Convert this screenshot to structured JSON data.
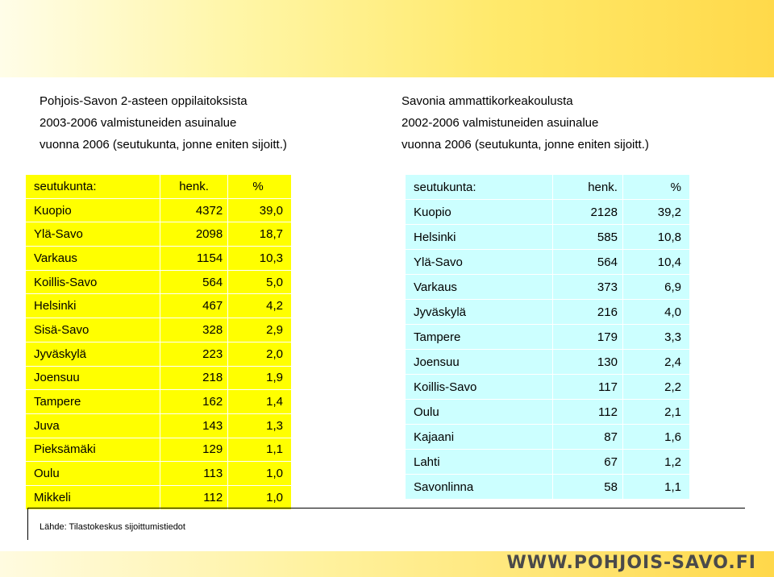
{
  "left": {
    "caption": [
      "Pohjois-Savon 2-asteen oppilaitoksista",
      "2003-2006 valmistuneiden asuinalue",
      "vuonna 2006 (seutukunta, jonne eniten sijoitt.)"
    ],
    "header": {
      "name": "seutukunta:",
      "henk": "henk.",
      "pct": "%"
    },
    "rows": [
      {
        "name": "Kuopio",
        "henk": "4372",
        "pct": "39,0"
      },
      {
        "name": "Ylä-Savo",
        "henk": "2098",
        "pct": "18,7"
      },
      {
        "name": "Varkaus",
        "henk": "1154",
        "pct": "10,3"
      },
      {
        "name": "Koillis-Savo",
        "henk": "564",
        "pct": "5,0"
      },
      {
        "name": "Helsinki",
        "henk": "467",
        "pct": "4,2"
      },
      {
        "name": "Sisä-Savo",
        "henk": "328",
        "pct": "2,9"
      },
      {
        "name": "Jyväskylä",
        "henk": "223",
        "pct": "2,0"
      },
      {
        "name": "Joensuu",
        "henk": "218",
        "pct": "1,9"
      },
      {
        "name": "Tampere",
        "henk": "162",
        "pct": "1,4"
      },
      {
        "name": "Juva",
        "henk": "143",
        "pct": "1,3"
      },
      {
        "name": "Pieksämäki",
        "henk": "129",
        "pct": "1,1"
      },
      {
        "name": "Oulu",
        "henk": "113",
        "pct": "1,0"
      },
      {
        "name": "Mikkeli",
        "henk": "112",
        "pct": "1,0"
      }
    ]
  },
  "right": {
    "caption": [
      "Savonia ammattikorkeakoulusta",
      "2002-2006 valmistuneiden asuinalue",
      "vuonna 2006 (seutukunta, jonne eniten sijoitt.)"
    ],
    "header": {
      "name": "seutukunta:",
      "henk": "henk.",
      "pct": "%"
    },
    "rows": [
      {
        "name": "Kuopio",
        "henk": "2128",
        "pct": "39,2"
      },
      {
        "name": "Helsinki",
        "henk": "585",
        "pct": "10,8"
      },
      {
        "name": "Ylä-Savo",
        "henk": "564",
        "pct": "10,4"
      },
      {
        "name": "Varkaus",
        "henk": "373",
        "pct": "6,9"
      },
      {
        "name": "Jyväskylä",
        "henk": "216",
        "pct": "4,0"
      },
      {
        "name": "Tampere",
        "henk": "179",
        "pct": "3,3"
      },
      {
        "name": "Joensuu",
        "henk": "130",
        "pct": "2,4"
      },
      {
        "name": "Koillis-Savo",
        "henk": "117",
        "pct": "2,2"
      },
      {
        "name": "Oulu",
        "henk": "112",
        "pct": "2,1"
      },
      {
        "name": "Kajaani",
        "henk": "87",
        "pct": "1,6"
      },
      {
        "name": "Lahti",
        "henk": "67",
        "pct": "1,2"
      },
      {
        "name": "Savonlinna",
        "henk": "58",
        "pct": "1,1"
      }
    ]
  },
  "source": "Lähde: Tilastokeskus sijoittumistiedot",
  "footer": {
    "url": "WWW.POHJOIS-SAVO.FI"
  },
  "colors": {
    "left_table": "#ffff00",
    "right_table": "#ccffff",
    "band": "#ffe96a"
  }
}
